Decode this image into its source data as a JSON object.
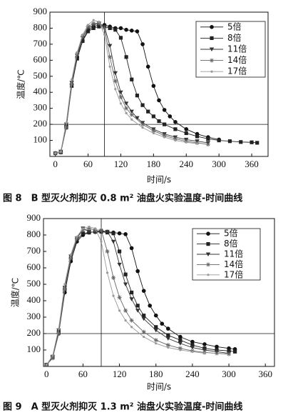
{
  "chart_data": [
    {
      "type": "line",
      "caption": "图 8　B 型灭火剂抑灭 0.8 m² 油盘火实验温度-时间曲线",
      "y_label": "温度/℃",
      "x_label": "时间/s",
      "xlim": [
        -10,
        390
      ],
      "ylim": [
        0,
        900
      ],
      "xticks": [
        0,
        60,
        120,
        180,
        240,
        300,
        360
      ],
      "yticks": [
        100,
        200,
        300,
        400,
        500,
        600,
        700,
        800,
        900
      ],
      "grid": false,
      "legend": "upper right",
      "ref_x": 90,
      "ref_y": 200,
      "series": [
        {
          "name": "5倍",
          "color": "#111111",
          "marker": "circle",
          "x": [
            0,
            10,
            20,
            30,
            40,
            50,
            60,
            70,
            80,
            90,
            100,
            110,
            120,
            130,
            140,
            150,
            160,
            170,
            180,
            190,
            200,
            210,
            220,
            240,
            260,
            280,
            300
          ],
          "values": [
            20,
            30,
            190,
            450,
            620,
            720,
            790,
            810,
            820,
            820,
            810,
            800,
            800,
            790,
            785,
            780,
            700,
            560,
            440,
            350,
            290,
            250,
            215,
            170,
            140,
            120,
            105
          ]
        },
        {
          "name": "8倍",
          "color": "#222222",
          "marker": "square",
          "x": [
            0,
            10,
            20,
            30,
            40,
            50,
            60,
            70,
            80,
            90,
            100,
            110,
            120,
            130,
            140,
            150,
            160,
            170,
            180,
            190,
            200,
            220,
            240,
            260,
            280,
            300,
            320,
            340,
            360,
            370
          ],
          "values": [
            20,
            25,
            180,
            440,
            610,
            720,
            780,
            800,
            810,
            810,
            800,
            790,
            740,
            620,
            480,
            380,
            320,
            280,
            250,
            220,
            200,
            170,
            145,
            125,
            110,
            100,
            95,
            90,
            88,
            85
          ]
        },
        {
          "name": "11倍",
          "color": "#333333",
          "marker": "triangle",
          "x": [
            0,
            10,
            20,
            30,
            40,
            50,
            60,
            70,
            80,
            90,
            100,
            110,
            120,
            130,
            140,
            150,
            160,
            180,
            200,
            220,
            240,
            260,
            280
          ],
          "values": [
            20,
            30,
            200,
            460,
            630,
            740,
            800,
            820,
            830,
            810,
            690,
            520,
            400,
            330,
            280,
            240,
            210,
            170,
            140,
            120,
            105,
            95,
            85
          ]
        },
        {
          "name": "14倍",
          "color": "#666666",
          "marker": "asterisk",
          "x": [
            0,
            10,
            20,
            30,
            40,
            50,
            60,
            70,
            80,
            90,
            100,
            110,
            120,
            130,
            140,
            160,
            180,
            200,
            220,
            240,
            260,
            280
          ],
          "values": [
            20,
            25,
            180,
            450,
            640,
            750,
            810,
            830,
            830,
            800,
            620,
            470,
            370,
            300,
            260,
            200,
            160,
            130,
            110,
            95,
            85,
            75
          ]
        },
        {
          "name": "17倍",
          "color": "#999999",
          "marker": "dot",
          "x": [
            0,
            10,
            20,
            30,
            40,
            50,
            60,
            70,
            80,
            90,
            100,
            110,
            120,
            130,
            140,
            160,
            180,
            200,
            220,
            240,
            260
          ],
          "values": [
            20,
            30,
            210,
            480,
            650,
            760,
            820,
            850,
            840,
            760,
            560,
            420,
            330,
            270,
            230,
            180,
            145,
            120,
            100,
            88,
            80
          ]
        }
      ]
    },
    {
      "type": "line",
      "caption": "图 9　A 型灭火剂抑灭 1.3 m² 油盘火实验温度-时间曲线",
      "y_label": "温度/℃",
      "x_label": "时间/s",
      "xlim": [
        -5,
        375
      ],
      "ylim": [
        0,
        900
      ],
      "xticks": [
        0,
        60,
        120,
        180,
        240,
        300,
        360
      ],
      "yticks": [
        100,
        200,
        300,
        400,
        500,
        600,
        700,
        800,
        900
      ],
      "grid": false,
      "legend": "upper right",
      "ref_x": 90,
      "ref_y": 200,
      "series": [
        {
          "name": "5倍",
          "color": "#111111",
          "marker": "circle",
          "x": [
            0,
            10,
            20,
            30,
            40,
            50,
            60,
            70,
            80,
            90,
            100,
            110,
            120,
            130,
            140,
            150,
            160,
            170,
            180,
            190,
            200,
            220,
            240,
            260,
            280,
            300,
            310
          ],
          "values": [
            10,
            60,
            200,
            450,
            640,
            760,
            800,
            815,
            820,
            825,
            820,
            815,
            810,
            805,
            720,
            580,
            460,
            370,
            310,
            260,
            230,
            180,
            150,
            135,
            120,
            110,
            105
          ]
        },
        {
          "name": "8倍",
          "color": "#222222",
          "marker": "square",
          "x": [
            0,
            10,
            20,
            30,
            40,
            50,
            60,
            70,
            80,
            90,
            100,
            110,
            120,
            130,
            140,
            150,
            160,
            180,
            200,
            220,
            240,
            260,
            280,
            300,
            310
          ],
          "values": [
            10,
            55,
            210,
            470,
            660,
            770,
            810,
            815,
            820,
            820,
            815,
            810,
            700,
            560,
            450,
            370,
            310,
            240,
            190,
            160,
            130,
            110,
            100,
            95,
            90
          ]
        },
        {
          "name": "11倍",
          "color": "#333333",
          "marker": "triangle",
          "x": [
            0,
            10,
            20,
            30,
            40,
            50,
            60,
            70,
            80,
            90,
            100,
            110,
            120,
            130,
            140,
            150,
            160,
            180,
            200,
            220,
            240,
            260,
            280,
            300
          ],
          "values": [
            10,
            60,
            220,
            480,
            670,
            780,
            840,
            820,
            815,
            820,
            820,
            760,
            620,
            500,
            410,
            340,
            290,
            220,
            170,
            140,
            115,
            100,
            90,
            80
          ]
        },
        {
          "name": "14倍",
          "color": "#666666",
          "marker": "asterisk",
          "x": [
            0,
            10,
            20,
            30,
            40,
            50,
            60,
            70,
            80,
            90,
            100,
            110,
            120,
            130,
            140,
            160,
            180,
            200,
            220,
            240,
            260,
            280,
            300
          ],
          "values": [
            10,
            50,
            200,
            470,
            660,
            780,
            830,
            840,
            830,
            830,
            700,
            540,
            420,
            340,
            280,
            210,
            160,
            130,
            110,
            95,
            85,
            80,
            75
          ]
        },
        {
          "name": "17倍",
          "color": "#999999",
          "marker": "dot",
          "x": [
            0,
            10,
            20,
            30,
            40,
            50,
            60,
            70,
            80,
            90,
            100,
            110,
            120,
            130,
            140,
            160,
            180,
            200,
            220,
            240,
            260
          ],
          "values": [
            10,
            65,
            230,
            500,
            680,
            790,
            840,
            850,
            840,
            760,
            570,
            430,
            340,
            280,
            240,
            180,
            140,
            115,
            100,
            90,
            80
          ]
        }
      ]
    }
  ]
}
